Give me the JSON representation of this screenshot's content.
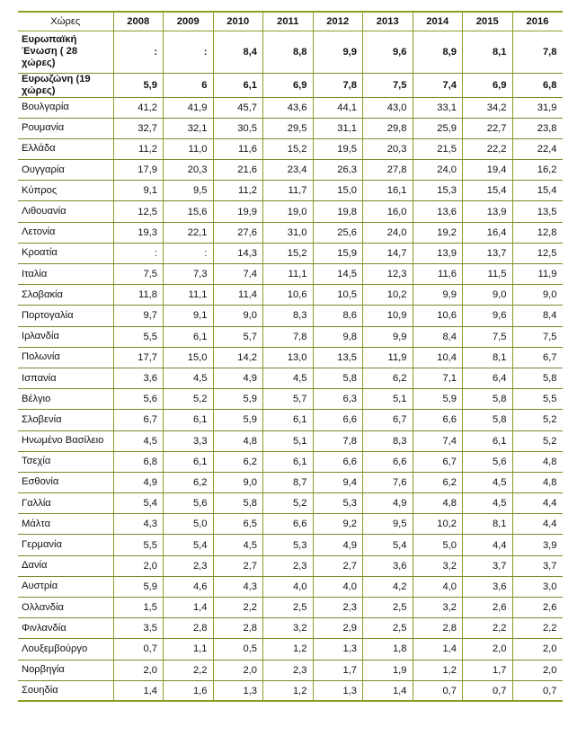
{
  "header": {
    "country_label": "Χώρες",
    "years": [
      "2008",
      "2009",
      "2010",
      "2011",
      "2012",
      "2013",
      "2014",
      "2015",
      "2016"
    ]
  },
  "aggregates": [
    {
      "name": "Ευρωπαϊκή Ένωση ( 28 χώρες)",
      "values": [
        ":",
        ":",
        "8,4",
        "8,8",
        "9,9",
        "9,6",
        "8,9",
        "8,1",
        "7,8"
      ]
    },
    {
      "name": "Ευρωζώνη (19 χώρες)",
      "values": [
        "5,9",
        "6",
        "6,1",
        "6,9",
        "7,8",
        "7,5",
        "7,4",
        "6,9",
        "6,8"
      ]
    }
  ],
  "rows": [
    {
      "name": "Βουλγαρία",
      "values": [
        "41,2",
        "41,9",
        "45,7",
        "43,6",
        "44,1",
        "43,0",
        "33,1",
        "34,2",
        "31,9"
      ]
    },
    {
      "name": "Ρουμανία",
      "values": [
        "32,7",
        "32,1",
        "30,5",
        "29,5",
        "31,1",
        "29,8",
        "25,9",
        "22,7",
        "23,8"
      ]
    },
    {
      "name": "Ελλάδα",
      "values": [
        "11,2",
        "11,0",
        "11,6",
        "15,2",
        "19,5",
        "20,3",
        "21,5",
        "22,2",
        "22,4"
      ]
    },
    {
      "name": "Ουγγαρία",
      "values": [
        "17,9",
        "20,3",
        "21,6",
        "23,4",
        "26,3",
        "27,8",
        "24,0",
        "19,4",
        "16,2"
      ]
    },
    {
      "name": "Κύπρος",
      "values": [
        "9,1",
        "9,5",
        "11,2",
        "11,7",
        "15,0",
        "16,1",
        "15,3",
        "15,4",
        "15,4"
      ]
    },
    {
      "name": "Λιθουανία",
      "values": [
        "12,5",
        "15,6",
        "19,9",
        "19,0",
        "19,8",
        "16,0",
        "13,6",
        "13,9",
        "13,5"
      ]
    },
    {
      "name": "Λετονία",
      "values": [
        "19,3",
        "22,1",
        "27,6",
        "31,0",
        "25,6",
        "24,0",
        "19,2",
        "16,4",
        "12,8"
      ]
    },
    {
      "name": "Κροατία",
      "values": [
        ":",
        ":",
        "14,3",
        "15,2",
        "15,9",
        "14,7",
        "13,9",
        "13,7",
        "12,5"
      ]
    },
    {
      "name": "Ιταλία",
      "values": [
        "7,5",
        "7,3",
        "7,4",
        "11,1",
        "14,5",
        "12,3",
        "11,6",
        "11,5",
        "11,9"
      ]
    },
    {
      "name": "Σλοβακία",
      "values": [
        "11,8",
        "11,1",
        "11,4",
        "10,6",
        "10,5",
        "10,2",
        "9,9",
        "9,0",
        "9,0"
      ]
    },
    {
      "name": "Πορτογαλία",
      "values": [
        "9,7",
        "9,1",
        "9,0",
        "8,3",
        "8,6",
        "10,9",
        "10,6",
        "9,6",
        "8,4"
      ]
    },
    {
      "name": "Ιρλανδία",
      "values": [
        "5,5",
        "6,1",
        "5,7",
        "7,8",
        "9,8",
        "9,9",
        "8,4",
        "7,5",
        "7,5"
      ]
    },
    {
      "name": "Πολωνία",
      "values": [
        "17,7",
        "15,0",
        "14,2",
        "13,0",
        "13,5",
        "11,9",
        "10,4",
        "8,1",
        "6,7"
      ]
    },
    {
      "name": "Ισπανία",
      "values": [
        "3,6",
        "4,5",
        "4,9",
        "4,5",
        "5,8",
        "6,2",
        "7,1",
        "6,4",
        "5,8"
      ]
    },
    {
      "name": "Βέλγιο",
      "values": [
        "5,6",
        "5,2",
        "5,9",
        "5,7",
        "6,3",
        "5,1",
        "5,9",
        "5,8",
        "5,5"
      ]
    },
    {
      "name": "Σλοβενία",
      "values": [
        "6,7",
        "6,1",
        "5,9",
        "6,1",
        "6,6",
        "6,7",
        "6,6",
        "5,8",
        "5,2"
      ]
    },
    {
      "name": "Ηνωμένο Βασίλειο",
      "values": [
        "4,5",
        "3,3",
        "4,8",
        "5,1",
        "7,8",
        "8,3",
        "7,4",
        "6,1",
        "5,2"
      ]
    },
    {
      "name": "Τσεχία",
      "values": [
        "6,8",
        "6,1",
        "6,2",
        "6,1",
        "6,6",
        "6,6",
        "6,7",
        "5,6",
        "4,8"
      ]
    },
    {
      "name": "Εσθονία",
      "values": [
        "4,9",
        "6,2",
        "9,0",
        "8,7",
        "9,4",
        "7,6",
        "6,2",
        "4,5",
        "4,8"
      ]
    },
    {
      "name": "Γαλλία",
      "values": [
        "5,4",
        "5,6",
        "5,8",
        "5,2",
        "5,3",
        "4,9",
        "4,8",
        "4,5",
        "4,4"
      ]
    },
    {
      "name": "Μάλτα",
      "values": [
        "4,3",
        "5,0",
        "6,5",
        "6,6",
        "9,2",
        "9,5",
        "10,2",
        "8,1",
        "4,4"
      ]
    },
    {
      "name": "Γερμανία",
      "values": [
        "5,5",
        "5,4",
        "4,5",
        "5,3",
        "4,9",
        "5,4",
        "5,0",
        "4,4",
        "3,9"
      ]
    },
    {
      "name": "Δανία",
      "values": [
        "2,0",
        "2,3",
        "2,7",
        "2,3",
        "2,7",
        "3,6",
        "3,2",
        "3,7",
        "3,7"
      ]
    },
    {
      "name": "Αυστρία",
      "values": [
        "5,9",
        "4,6",
        "4,3",
        "4,0",
        "4,0",
        "4,2",
        "4,0",
        "3,6",
        "3,0"
      ]
    },
    {
      "name": "Ολλανδία",
      "values": [
        "1,5",
        "1,4",
        "2,2",
        "2,5",
        "2,3",
        "2,5",
        "3,2",
        "2,6",
        "2,6"
      ]
    },
    {
      "name": "Φινλανδία",
      "values": [
        "3,5",
        "2,8",
        "2,8",
        "3,2",
        "2,9",
        "2,5",
        "2,8",
        "2,2",
        "2,2"
      ]
    },
    {
      "name": "Λουξεμβούργο",
      "values": [
        "0,7",
        "1,1",
        "0,5",
        "1,2",
        "1,3",
        "1,8",
        "1,4",
        "2,0",
        "2,0"
      ]
    },
    {
      "name": "Νορβηγία",
      "values": [
        "2,0",
        "2,2",
        "2,0",
        "2,3",
        "1,7",
        "1,9",
        "1,2",
        "1,7",
        "2,0"
      ]
    },
    {
      "name": "Σουηδία",
      "values": [
        "1,4",
        "1,6",
        "1,3",
        "1,2",
        "1,3",
        "1,4",
        "0,7",
        "0,7",
        "0,7"
      ]
    }
  ]
}
